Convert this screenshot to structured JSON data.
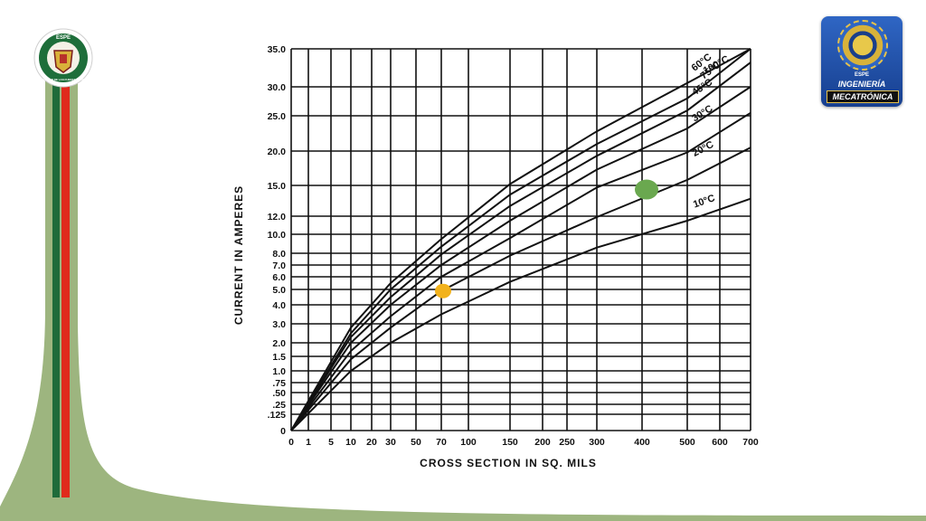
{
  "logo_left": {
    "top_text": "ESPE",
    "ring_text": "UNIVERSIDAD DE LAS FUERZAS ARMADAS"
  },
  "logo_right": {
    "line1": "ESPE",
    "line2": "INGENIERÍA",
    "line3": "MECATRÓNICA"
  },
  "colors": {
    "band_green": "#9db57f",
    "stripe_dark_green": "#1f6b3a",
    "stripe_red": "#e02a1c",
    "marker_orange": "#f2b21b",
    "marker_green": "#6aa84f",
    "brand_blue": "#2b5fb8"
  },
  "chart_data": {
    "type": "line",
    "xlabel": "CROSS SECTION IN SQ. MILS",
    "ylabel": "CURRENT IN AMPERES",
    "x_ticks": [
      {
        "value": 0,
        "label": "0"
      },
      {
        "value": 1,
        "label": "1"
      },
      {
        "value": 5,
        "label": "5"
      },
      {
        "value": 10,
        "label": "10"
      },
      {
        "value": 20,
        "label": "20"
      },
      {
        "value": 30,
        "label": "30"
      },
      {
        "value": 50,
        "label": "50"
      },
      {
        "value": 70,
        "label": "70"
      },
      {
        "value": 100,
        "label": "100"
      },
      {
        "value": 150,
        "label": "150"
      },
      {
        "value": 200,
        "label": "200"
      },
      {
        "value": 250,
        "label": "250"
      },
      {
        "value": 300,
        "label": "300"
      },
      {
        "value": 400,
        "label": "400"
      },
      {
        "value": 500,
        "label": "500"
      },
      {
        "value": 600,
        "label": "600"
      },
      {
        "value": 700,
        "label": "700"
      }
    ],
    "y_ticks": [
      {
        "value": 0,
        "label": "0"
      },
      {
        "value": 0.125,
        "label": ".125"
      },
      {
        "value": 0.25,
        "label": ".25"
      },
      {
        "value": 0.5,
        "label": ".50"
      },
      {
        "value": 0.75,
        "label": ".75"
      },
      {
        "value": 1.0,
        "label": "1.0"
      },
      {
        "value": 1.5,
        "label": "1.5"
      },
      {
        "value": 2.0,
        "label": "2.0"
      },
      {
        "value": 3.0,
        "label": "3.0"
      },
      {
        "value": 4.0,
        "label": "4.0"
      },
      {
        "value": 5.0,
        "label": "5.0"
      },
      {
        "value": 6.0,
        "label": "6.0"
      },
      {
        "value": 7.0,
        "label": "7.0"
      },
      {
        "value": 8.0,
        "label": "8.0"
      },
      {
        "value": 10.0,
        "label": "10.0"
      },
      {
        "value": 12.0,
        "label": "12.0"
      },
      {
        "value": 15.0,
        "label": "15.0"
      },
      {
        "value": 20.0,
        "label": "20.0"
      },
      {
        "value": 25.0,
        "label": "25.0"
      },
      {
        "value": 30.0,
        "label": "30.0"
      },
      {
        "value": 35.0,
        "label": "35.0"
      }
    ],
    "grid": true,
    "series": [
      {
        "name": "10°C",
        "points": [
          [
            0,
            0
          ],
          [
            10,
            1.0
          ],
          [
            30,
            2.0
          ],
          [
            70,
            3.5
          ],
          [
            150,
            5.6
          ],
          [
            300,
            8.6
          ],
          [
            500,
            11.5
          ],
          [
            700,
            13.7
          ]
        ]
      },
      {
        "name": "20°C",
        "points": [
          [
            0,
            0
          ],
          [
            10,
            1.4
          ],
          [
            30,
            2.8
          ],
          [
            70,
            4.9
          ],
          [
            150,
            7.8
          ],
          [
            300,
            11.9
          ],
          [
            500,
            15.8
          ],
          [
            700,
            20.5
          ]
        ]
      },
      {
        "name": "30°C",
        "points": [
          [
            0,
            0
          ],
          [
            10,
            1.7
          ],
          [
            30,
            3.4
          ],
          [
            70,
            6.0
          ],
          [
            150,
            9.6
          ],
          [
            300,
            14.8
          ],
          [
            500,
            19.8
          ],
          [
            700,
            25.5
          ]
        ]
      },
      {
        "name": "45°C",
        "points": [
          [
            0,
            0
          ],
          [
            10,
            2.0
          ],
          [
            30,
            4.0
          ],
          [
            70,
            7.0
          ],
          [
            150,
            11.5
          ],
          [
            300,
            17.3
          ],
          [
            500,
            23.2
          ],
          [
            700,
            30.0
          ]
        ]
      },
      {
        "name": "60°C",
        "points": [
          [
            0,
            0
          ],
          [
            10,
            2.3
          ],
          [
            30,
            4.5
          ],
          [
            70,
            7.9
          ],
          [
            150,
            13.0
          ],
          [
            300,
            19.3
          ],
          [
            500,
            25.9
          ],
          [
            700,
            33.2
          ]
        ]
      },
      {
        "name": "75°C",
        "points": [
          [
            0,
            0
          ],
          [
            10,
            2.5
          ],
          [
            30,
            5.0
          ],
          [
            70,
            8.7
          ],
          [
            150,
            14.1
          ],
          [
            300,
            21.0
          ],
          [
            500,
            28.0
          ],
          [
            700,
            35.0
          ]
        ]
      },
      {
        "name": "100°C",
        "points": [
          [
            0,
            0
          ],
          [
            10,
            2.8
          ],
          [
            30,
            5.5
          ],
          [
            70,
            9.5
          ],
          [
            150,
            15.2
          ],
          [
            300,
            22.8
          ],
          [
            500,
            30.5
          ],
          [
            700,
            35.0
          ]
        ]
      }
    ],
    "markers": [
      {
        "x": 72,
        "y": 4.9,
        "color": "#f2b21b",
        "size": "small"
      },
      {
        "x": 410,
        "y": 14.6,
        "color": "#6aa84f",
        "size": "large"
      }
    ]
  }
}
